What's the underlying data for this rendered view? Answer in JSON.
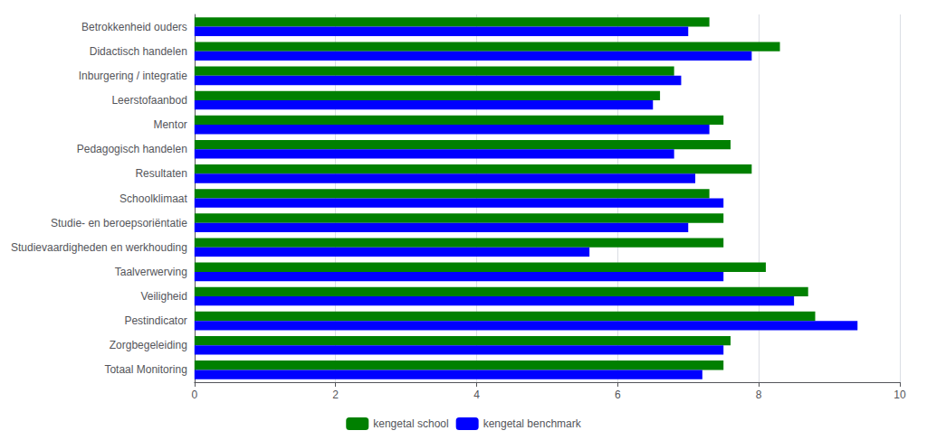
{
  "chart_data": {
    "type": "bar",
    "orientation": "horizontal",
    "categories": [
      "Betrokkenheid ouders",
      "Didactisch handelen",
      "Inburgering / integratie",
      "Leerstofaanbod",
      "Mentor",
      "Pedagogisch handelen",
      "Resultaten",
      "Schoolklimaat",
      "Studie- en beroepsoriëntatie",
      "Studievaardigheden en werkhouding",
      "Taalverwerving",
      "Veiligheid",
      "Pestindicator",
      "Zorgbegeleiding",
      "Totaal Monitoring"
    ],
    "series": [
      {
        "name": "kengetal school",
        "color": "#008000",
        "values": [
          7.3,
          8.3,
          6.8,
          6.6,
          7.5,
          7.6,
          7.9,
          7.3,
          7.5,
          7.5,
          8.1,
          8.7,
          8.8,
          7.6,
          7.5
        ]
      },
      {
        "name": "kengetal benchmark",
        "color": "#0000FF",
        "values": [
          7.0,
          7.9,
          6.9,
          6.5,
          7.3,
          6.8,
          7.1,
          7.5,
          7.0,
          5.6,
          7.5,
          8.5,
          9.4,
          7.5,
          7.2
        ]
      }
    ],
    "xlim": [
      0,
      10
    ],
    "xticks": [
      0,
      2,
      4,
      6,
      8,
      10
    ],
    "grid": true,
    "legend": "bottom"
  }
}
